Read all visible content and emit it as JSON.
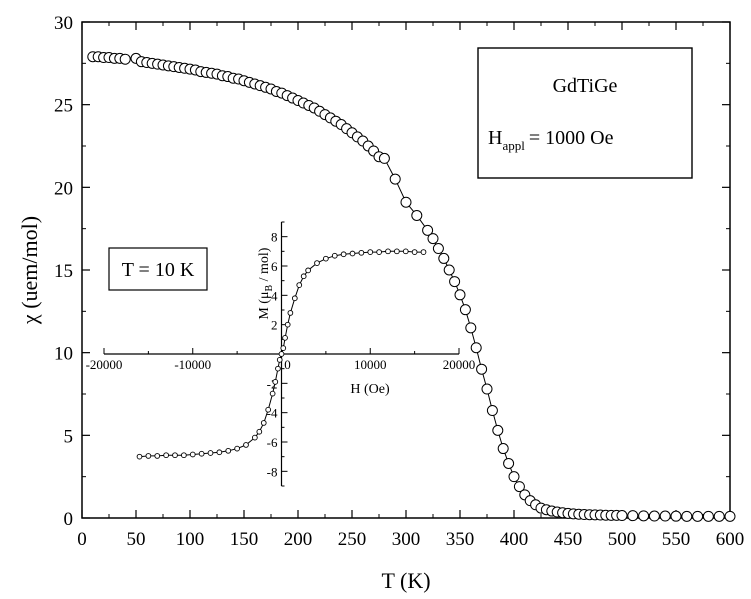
{
  "chart_data": [
    {
      "type": "scatter",
      "title": "",
      "xlabel": "T (K)",
      "ylabel": "χ (uem/mol)",
      "xlim": [
        0,
        600
      ],
      "ylim": [
        0,
        30
      ],
      "xticks": [
        0,
        50,
        100,
        150,
        200,
        250,
        300,
        350,
        400,
        450,
        500,
        550,
        600
      ],
      "yticks": [
        0,
        5,
        10,
        15,
        20,
        25,
        30
      ],
      "grid": false,
      "legend": {
        "compound": "GdTiGe",
        "field_symbol": "H",
        "field_subscript": "appl",
        "field_value": "= 1000 Oe",
        "position": "top-right"
      },
      "series": [
        {
          "marker": "open-circle",
          "line": true,
          "x": [
            10,
            15,
            20,
            25,
            30,
            35,
            40,
            50,
            55,
            60,
            65,
            70,
            75,
            80,
            85,
            90,
            95,
            100,
            105,
            110,
            115,
            120,
            125,
            130,
            135,
            140,
            145,
            150,
            155,
            160,
            165,
            170,
            175,
            180,
            185,
            190,
            195,
            200,
            205,
            210,
            215,
            220,
            225,
            230,
            235,
            240,
            245,
            250,
            255,
            260,
            265,
            270,
            275,
            280,
            290,
            300,
            310,
            320,
            325,
            330,
            335,
            340,
            345,
            350,
            355,
            360,
            365,
            370,
            375,
            380,
            385,
            390,
            395,
            400,
            405,
            410,
            415,
            420,
            425,
            430,
            435,
            440,
            445,
            450,
            455,
            460,
            465,
            470,
            475,
            480,
            485,
            490,
            495,
            500,
            510,
            520,
            530,
            540,
            550,
            560,
            570,
            580,
            590,
            600
          ],
          "y": [
            27.9,
            27.9,
            27.85,
            27.85,
            27.8,
            27.8,
            27.75,
            27.8,
            27.6,
            27.55,
            27.5,
            27.45,
            27.4,
            27.35,
            27.3,
            27.25,
            27.2,
            27.15,
            27.1,
            27.0,
            26.95,
            26.9,
            26.85,
            26.75,
            26.7,
            26.6,
            26.55,
            26.45,
            26.35,
            26.25,
            26.15,
            26.05,
            25.95,
            25.8,
            25.7,
            25.55,
            25.4,
            25.25,
            25.1,
            24.95,
            24.8,
            24.6,
            24.4,
            24.2,
            24.0,
            23.8,
            23.55,
            23.3,
            23.05,
            22.8,
            22.5,
            22.2,
            21.85,
            21.75,
            20.5,
            19.1,
            18.3,
            17.4,
            16.9,
            16.3,
            15.7,
            15.0,
            14.3,
            13.5,
            12.6,
            11.5,
            10.3,
            9.0,
            7.8,
            6.5,
            5.3,
            4.2,
            3.3,
            2.5,
            1.9,
            1.4,
            1.05,
            0.8,
            0.6,
            0.5,
            0.42,
            0.36,
            0.32,
            0.28,
            0.25,
            0.23,
            0.21,
            0.2,
            0.19,
            0.18,
            0.17,
            0.16,
            0.16,
            0.15,
            0.14,
            0.13,
            0.12,
            0.12,
            0.11,
            0.1,
            0.1,
            0.1,
            0.1,
            0.1
          ]
        }
      ]
    },
    {
      "type": "scatter",
      "title": "",
      "xlabel": "H (Oe)",
      "ylabel_main": "M (μ",
      "ylabel_sub": "B",
      "ylabel_end": " / mol)",
      "xlim": [
        -20000,
        20000
      ],
      "ylim": [
        -9,
        9
      ],
      "xticks": [
        -20000,
        -10000,
        0,
        10000,
        20000
      ],
      "xtick_labels": [
        "-20000",
        "-10000",
        "0",
        "10000",
        "20000"
      ],
      "yticks": [
        -8,
        -6,
        -4,
        -2,
        2,
        4,
        6,
        8
      ],
      "grid": false,
      "annotation": "T = 10 K",
      "series": [
        {
          "marker": "open-circle-small",
          "line": true,
          "x": [
            -16000,
            -15000,
            -14000,
            -13000,
            -12000,
            -11000,
            -10000,
            -9000,
            -8000,
            -7000,
            -6000,
            -5000,
            -4000,
            -3000,
            -2500,
            -2000,
            -1500,
            -1000,
            -700,
            -400,
            -200,
            0,
            200,
            400,
            700,
            1000,
            1500,
            2000,
            2500,
            3000,
            4000,
            5000,
            6000,
            7000,
            8000,
            9000,
            10000,
            11000,
            12000,
            13000,
            14000,
            15000,
            16000
          ],
          "y": [
            -7.0,
            -6.95,
            -6.95,
            -6.9,
            -6.9,
            -6.9,
            -6.85,
            -6.8,
            -6.75,
            -6.7,
            -6.6,
            -6.45,
            -6.2,
            -5.7,
            -5.3,
            -4.7,
            -3.8,
            -2.7,
            -1.9,
            -1.0,
            -0.4,
            0,
            0.4,
            1.1,
            2.0,
            2.8,
            3.8,
            4.7,
            5.3,
            5.7,
            6.2,
            6.5,
            6.7,
            6.8,
            6.85,
            6.9,
            6.95,
            6.95,
            7.0,
            7.0,
            7.0,
            6.95,
            6.95
          ]
        }
      ]
    }
  ]
}
